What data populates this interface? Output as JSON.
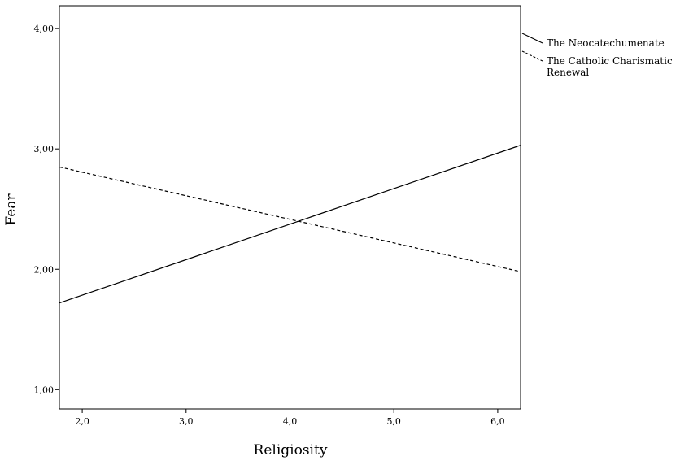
{
  "chart_data": {
    "type": "line",
    "xlabel": "Religiosity",
    "ylabel": "Fear",
    "xlim": [
      1.78,
      6.22
    ],
    "ylim": [
      0.84,
      4.19
    ],
    "xticks": [
      2.0,
      3.0,
      4.0,
      5.0,
      6.0
    ],
    "xtick_labels": [
      "2,0",
      "3,0",
      "4,0",
      "5,0",
      "6,0"
    ],
    "yticks": [
      1.0,
      2.0,
      3.0,
      4.0
    ],
    "ytick_labels": [
      "1,00",
      "2,00",
      "3,00",
      "4,00"
    ],
    "grid": false,
    "legend_position": "right",
    "series": [
      {
        "name": "The Neocatechumenate",
        "name_lines": [
          "The Neocatechumenate"
        ],
        "style": "solid",
        "x": [
          1.78,
          6.22
        ],
        "y": [
          1.72,
          3.03
        ]
      },
      {
        "name": "The Catholic Charismatic Renewal",
        "name_lines": [
          "The Catholic Charismatic",
          "Renewal"
        ],
        "style": "dashed",
        "x": [
          1.78,
          6.22
        ],
        "y": [
          2.85,
          1.98
        ]
      }
    ]
  }
}
